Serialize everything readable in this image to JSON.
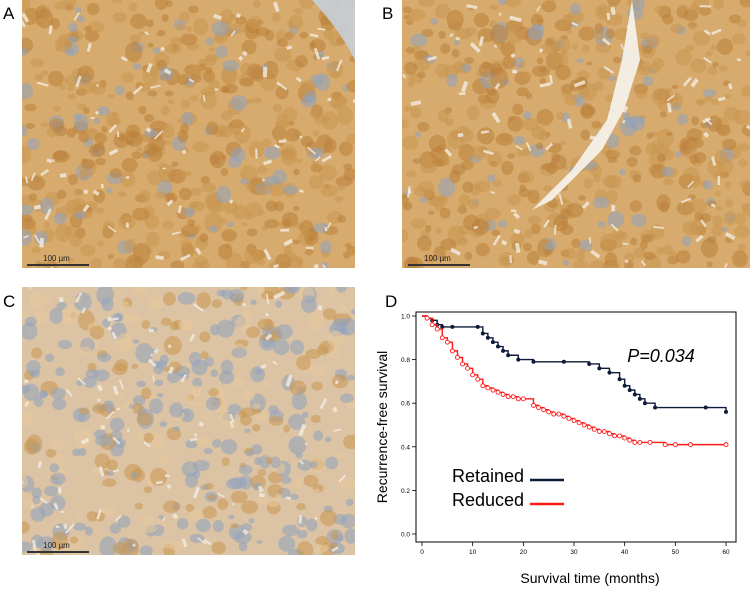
{
  "panels": {
    "a": {
      "letter": "A",
      "scale": "100 µm"
    },
    "b": {
      "letter": "B",
      "scale": "100 µm"
    },
    "c": {
      "letter": "C",
      "scale": "100 µm"
    },
    "d": {
      "letter": "D"
    }
  },
  "colors": {
    "stain_brown": "#c99550",
    "stain_light": "#e8c99a",
    "nuclei_blue": "#8fa3bd",
    "retained": "#0d1a3a",
    "reduced": "#ff1a1a"
  },
  "chart_data": {
    "type": "line",
    "subtype": "kaplan-meier",
    "title": "",
    "xlabel": "Survival time (months)",
    "ylabel": "Recurrence-free survival",
    "xlim": [
      0,
      60
    ],
    "ylim": [
      0.0,
      1.0
    ],
    "xticks": [
      "0",
      "10",
      "20",
      "30",
      "40",
      "50",
      "60"
    ],
    "yticks": [
      "0.0",
      "0.2",
      "0.4",
      "0.6",
      "0.8",
      "1.0"
    ],
    "annotation": "P=0.034",
    "legend": {
      "position": "bottom-left",
      "entries": [
        "Retained",
        "Reduced"
      ]
    },
    "series": [
      {
        "name": "Retained",
        "color": "#0d1a3a",
        "x": [
          0,
          1,
          2,
          3,
          4,
          6,
          11,
          12,
          13,
          14,
          15,
          16,
          17,
          19,
          22,
          28,
          33,
          35,
          37,
          39,
          40,
          41,
          42,
          43,
          44,
          46,
          56,
          60
        ],
        "y": [
          1.0,
          0.99,
          0.98,
          0.96,
          0.95,
          0.95,
          0.95,
          0.92,
          0.9,
          0.88,
          0.86,
          0.84,
          0.82,
          0.8,
          0.79,
          0.79,
          0.78,
          0.76,
          0.74,
          0.71,
          0.68,
          0.66,
          0.64,
          0.62,
          0.6,
          0.58,
          0.58,
          0.56
        ]
      },
      {
        "name": "Reduced",
        "color": "#ff1a1a",
        "x": [
          0,
          1,
          2,
          3,
          4,
          5,
          6,
          7,
          8,
          9,
          10,
          11,
          12,
          13,
          14,
          15,
          16,
          17,
          18,
          19,
          20,
          22,
          23,
          24,
          25,
          26,
          27,
          28,
          29,
          30,
          31,
          32,
          33,
          34,
          35,
          36,
          37,
          38,
          39,
          40,
          41,
          42,
          43,
          45,
          48,
          50,
          53,
          60
        ],
        "y": [
          1.0,
          0.99,
          0.96,
          0.94,
          0.9,
          0.88,
          0.84,
          0.81,
          0.78,
          0.76,
          0.73,
          0.71,
          0.68,
          0.67,
          0.66,
          0.65,
          0.64,
          0.63,
          0.63,
          0.62,
          0.62,
          0.59,
          0.58,
          0.57,
          0.56,
          0.55,
          0.55,
          0.54,
          0.53,
          0.52,
          0.51,
          0.5,
          0.49,
          0.48,
          0.47,
          0.47,
          0.46,
          0.45,
          0.45,
          0.44,
          0.43,
          0.42,
          0.42,
          0.42,
          0.41,
          0.41,
          0.41,
          0.41
        ]
      }
    ]
  }
}
